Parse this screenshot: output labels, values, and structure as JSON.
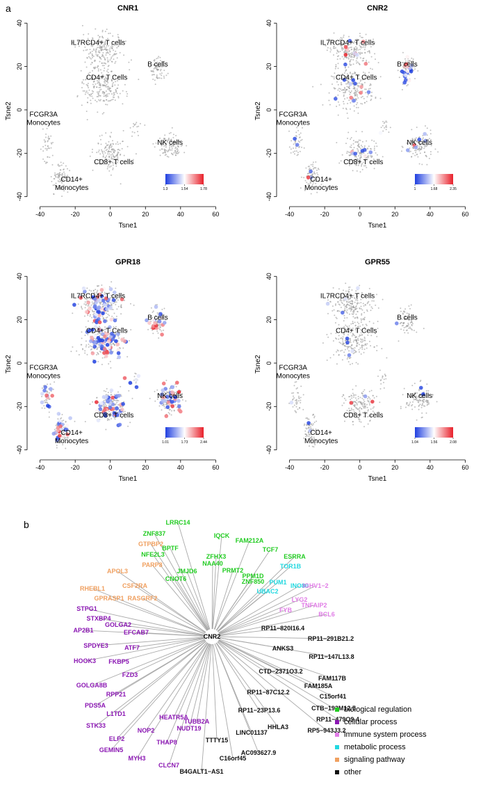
{
  "panel_letters": {
    "a": "a",
    "b": "b"
  },
  "colors": {
    "points_gray": "#9a9a9a",
    "low": "#1f3fe0",
    "mid": "#ffffff",
    "high": "#e8202a",
    "biological regulation": "#22cc22",
    "cellular process": "#8b17b3",
    "immune system process": "#e07ce6",
    "metabolic process": "#22d8e0",
    "signaling pathway": "#f0a060",
    "other": "#111111"
  },
  "chart_data": [
    {
      "type": "scatter",
      "title": "CNR1",
      "xlabel": "Tsne1",
      "ylabel": "Tsne2",
      "xlim": [
        -45,
        65
      ],
      "ylim": [
        -43,
        42
      ],
      "xticks": [
        -40,
        -20,
        0,
        20,
        40,
        60
      ],
      "yticks": [
        -40,
        -20,
        0,
        20,
        40
      ],
      "clusters": [
        {
          "label": "IL7RCD4+  T cells",
          "x": -7,
          "y": 30
        },
        {
          "label": "CD4+ T Cells",
          "x": -2,
          "y": 14
        },
        {
          "label": "B cells",
          "x": 27,
          "y": 20
        },
        {
          "label": "FCGR3A\nMonocytes",
          "x": -38,
          "y": -5
        },
        {
          "label": "NK cells",
          "x": 34,
          "y": -16
        },
        {
          "label": "CD8+ T cells",
          "x": 2,
          "y": -25
        },
        {
          "label": "CD14+\nMonocytes",
          "x": -22,
          "y": -35
        }
      ],
      "scale": {
        "min": 1.3,
        "mid": 1.54,
        "max": 1.78,
        "labels": [
          "1.3",
          "1.54",
          "1.78"
        ]
      },
      "highlight_density": 0.0
    },
    {
      "type": "scatter",
      "title": "CNR2",
      "xlabel": "Tsne1",
      "ylabel": "Tsne2",
      "xlim": [
        -45,
        65
      ],
      "ylim": [
        -43,
        42
      ],
      "xticks": [
        -40,
        -20,
        0,
        20,
        40,
        60
      ],
      "yticks": [
        -40,
        -20,
        0,
        20,
        40
      ],
      "clusters": [
        {
          "label": "IL7RCD4+  T cells",
          "x": -7,
          "y": 30
        },
        {
          "label": "CD4+ T Cells",
          "x": -2,
          "y": 14
        },
        {
          "label": "B cells",
          "x": 27,
          "y": 20
        },
        {
          "label": "FCGR3A\nMonocytes",
          "x": -38,
          "y": -5
        },
        {
          "label": "NK cells",
          "x": 34,
          "y": -16
        },
        {
          "label": "CD8+ T cells",
          "x": 2,
          "y": -25
        },
        {
          "label": "CD14+\nMonocytes",
          "x": -22,
          "y": -35
        }
      ],
      "scale": {
        "min": 1,
        "mid": 1.68,
        "max": 2.35,
        "labels": [
          "1",
          "1.68",
          "2.35"
        ]
      },
      "highlight_density": 0.05
    },
    {
      "type": "scatter",
      "title": "GPR18",
      "xlabel": "Tsne1",
      "ylabel": "Tsne2",
      "xlim": [
        -45,
        65
      ],
      "ylim": [
        -43,
        42
      ],
      "xticks": [
        -40,
        -20,
        0,
        20,
        40,
        60
      ],
      "yticks": [
        -40,
        -20,
        0,
        20,
        40
      ],
      "clusters": [
        {
          "label": "IL7RCD4+  T cells",
          "x": -7,
          "y": 30
        },
        {
          "label": "CD4+ T Cells",
          "x": -2,
          "y": 14
        },
        {
          "label": "B cells",
          "x": 27,
          "y": 20
        },
        {
          "label": "FCGR3A\nMonocytes",
          "x": -38,
          "y": -5
        },
        {
          "label": "NK cells",
          "x": 34,
          "y": -16
        },
        {
          "label": "CD8+ T cells",
          "x": 2,
          "y": -25
        },
        {
          "label": "CD14+\nMonocytes",
          "x": -22,
          "y": -35
        }
      ],
      "scale": {
        "min": 1.01,
        "mid": 1.73,
        "max": 2.44,
        "labels": [
          "1.01",
          "1.73",
          "2.44"
        ]
      },
      "highlight_density": 0.3
    },
    {
      "type": "scatter",
      "title": "GPR55",
      "xlabel": "Tsne1",
      "ylabel": "Tsne2",
      "xlim": [
        -45,
        65
      ],
      "ylim": [
        -43,
        42
      ],
      "xticks": [
        -40,
        -20,
        0,
        20,
        40,
        60
      ],
      "yticks": [
        -40,
        -20,
        0,
        20,
        40
      ],
      "clusters": [
        {
          "label": "IL7RCD4+  T cells",
          "x": -7,
          "y": 30
        },
        {
          "label": "CD4+ T Cells",
          "x": -2,
          "y": 14
        },
        {
          "label": "B cells",
          "x": 27,
          "y": 20
        },
        {
          "label": "FCGR3A\nMonocytes",
          "x": -38,
          "y": -5
        },
        {
          "label": "NK cells",
          "x": 34,
          "y": -16
        },
        {
          "label": "CD8+ T cells",
          "x": 2,
          "y": -25
        },
        {
          "label": "CD14+\nMonocytes",
          "x": -22,
          "y": -35
        }
      ],
      "scale": {
        "min": 1.04,
        "mid": 1.56,
        "max": 2.08,
        "labels": [
          "1.04",
          "1.56",
          "2.08"
        ]
      },
      "highlight_density": 0.02
    },
    {
      "type": "network",
      "hub": "CNR2",
      "nodes": [
        {
          "label": "IQCK",
          "category": "biological regulation"
        },
        {
          "label": "FAM212A",
          "category": "biological regulation"
        },
        {
          "label": "TCF7",
          "category": "biological regulation"
        },
        {
          "label": "ESRRA",
          "category": "biological regulation"
        },
        {
          "label": "TOR1B",
          "category": "metabolic process"
        },
        {
          "label": "INO80",
          "category": "metabolic process"
        },
        {
          "label": "IGHV1−2",
          "category": "immune system process"
        },
        {
          "label": "LYG2",
          "category": "immune system process"
        },
        {
          "label": "TNFAIP2",
          "category": "immune system process"
        },
        {
          "label": "BCL6",
          "category": "immune system process"
        },
        {
          "label": "FYB",
          "category": "immune system process"
        },
        {
          "label": "RP11−820I16.4",
          "category": "other"
        },
        {
          "label": "RP11−291B21.2",
          "category": "other"
        },
        {
          "label": "ANKS3",
          "category": "other"
        },
        {
          "label": "RP11−147L13.8",
          "category": "other"
        },
        {
          "label": "CTD−2371O3.2",
          "category": "other"
        },
        {
          "label": "FAM117B",
          "category": "other"
        },
        {
          "label": "FAM185A",
          "category": "other"
        },
        {
          "label": "C15orf41",
          "category": "other"
        },
        {
          "label": "RP11−87C12.2",
          "category": "other"
        },
        {
          "label": "CTB−193M12.5",
          "category": "other"
        },
        {
          "label": "RP11−479O9.4",
          "category": "other"
        },
        {
          "label": "RP11−23P13.6",
          "category": "other"
        },
        {
          "label": "RP5−943J3.2",
          "category": "other"
        },
        {
          "label": "HHLA3",
          "category": "other"
        },
        {
          "label": "LINC01137",
          "category": "other"
        },
        {
          "label": "AC093627.9",
          "category": "other"
        },
        {
          "label": "TTTY15",
          "category": "other"
        },
        {
          "label": "C16orf45",
          "category": "other"
        },
        {
          "label": "B4GALT1−AS1",
          "category": "other"
        },
        {
          "label": "CLCN7",
          "category": "cellular process"
        },
        {
          "label": "MYH3",
          "category": "cellular process"
        },
        {
          "label": "GEMIN5",
          "category": "cellular process"
        },
        {
          "label": "THAP8",
          "category": "cellular process"
        },
        {
          "label": "NUDT19",
          "category": "cellular process"
        },
        {
          "label": "TUBB2A",
          "category": "cellular process"
        },
        {
          "label": "HEATR5A",
          "category": "cellular process"
        },
        {
          "label": "NOP2",
          "category": "cellular process"
        },
        {
          "label": "ELP2",
          "category": "cellular process"
        },
        {
          "label": "STK33",
          "category": "cellular process"
        },
        {
          "label": "L1TD1",
          "category": "cellular process"
        },
        {
          "label": "PDS5A",
          "category": "cellular process"
        },
        {
          "label": "RPP21",
          "category": "cellular process"
        },
        {
          "label": "GOLGA8B",
          "category": "cellular process"
        },
        {
          "label": "FZD3",
          "category": "cellular process"
        },
        {
          "label": "FKBP5",
          "category": "cellular process"
        },
        {
          "label": "ATF7",
          "category": "cellular process"
        },
        {
          "label": "HOOK3",
          "category": "cellular process"
        },
        {
          "label": "SPDYE3",
          "category": "cellular process"
        },
        {
          "label": "EFCAB7",
          "category": "cellular process"
        },
        {
          "label": "AP2B1",
          "category": "cellular process"
        },
        {
          "label": "GOLGA2",
          "category": "cellular process"
        },
        {
          "label": "STXBP4",
          "category": "cellular process"
        },
        {
          "label": "STPG1",
          "category": "cellular process"
        },
        {
          "label": "RHEBL1",
          "category": "signaling pathway"
        },
        {
          "label": "GPRASP1",
          "category": "signaling pathway"
        },
        {
          "label": "RASGRF2",
          "category": "signaling pathway"
        },
        {
          "label": "CSF2RA",
          "category": "signaling pathway"
        },
        {
          "label": "APOL3",
          "category": "signaling pathway"
        },
        {
          "label": "PARP8",
          "category": "signaling pathway"
        },
        {
          "label": "GTPBP2",
          "category": "signaling pathway"
        },
        {
          "label": "CNOT6",
          "category": "biological regulation"
        },
        {
          "label": "NFE2L3",
          "category": "biological regulation"
        },
        {
          "label": "ZNF837",
          "category": "biological regulation"
        },
        {
          "label": "BPTF",
          "category": "biological regulation"
        },
        {
          "label": "LRRC14",
          "category": "biological regulation"
        },
        {
          "label": "JMJD6",
          "category": "biological regulation"
        },
        {
          "label": "ZFHX3",
          "category": "biological regulation"
        },
        {
          "label": "NAA40",
          "category": "biological regulation"
        },
        {
          "label": "PRMT2",
          "category": "biological regulation"
        },
        {
          "label": "PPM1D",
          "category": "biological regulation"
        },
        {
          "label": "ZNF850",
          "category": "biological regulation"
        },
        {
          "label": "PUM1",
          "category": "metabolic process"
        },
        {
          "label": "UBAC2",
          "category": "metabolic process"
        }
      ],
      "legend": [
        "biological regulation",
        "cellular process",
        "immune system process",
        "metabolic process",
        "signaling pathway",
        "other"
      ]
    }
  ]
}
